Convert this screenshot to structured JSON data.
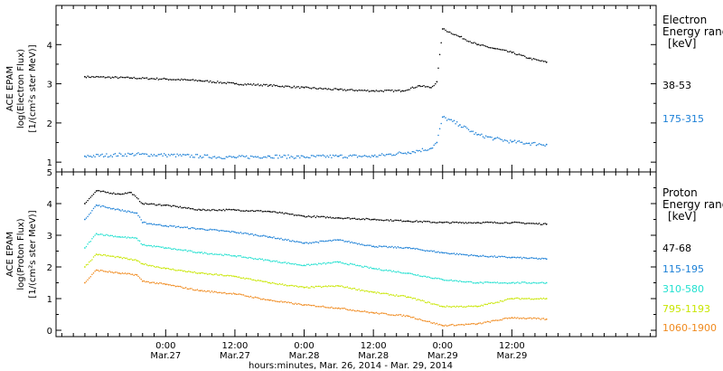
{
  "chart_data": [
    {
      "type": "scatter",
      "panel": "electron",
      "ylabel_lines": [
        "ACE EPAM",
        "log(Electron Flux)",
        "[1/(cm²s ster MeV)]"
      ],
      "ylim": [
        0.75,
        5.0
      ],
      "yticks": [
        1,
        2,
        3,
        4
      ],
      "legend_title": [
        "Electron",
        "Energy ranges",
        "[keV]"
      ],
      "series": [
        {
          "name": "38-53",
          "color": "#000000",
          "points": [
            [
              -14,
              3.18
            ],
            [
              -6,
              3.15
            ],
            [
              0,
              3.12
            ],
            [
              6,
              3.08
            ],
            [
              12,
              3.0
            ],
            [
              18,
              2.96
            ],
            [
              24,
              2.9
            ],
            [
              30,
              2.85
            ],
            [
              36,
              2.82
            ],
            [
              41,
              2.82
            ],
            [
              44,
              2.95
            ],
            [
              46,
              2.9
            ],
            [
              47,
              3.05
            ],
            [
              48,
              4.4
            ],
            [
              51,
              4.2
            ],
            [
              54,
              4.0
            ],
            [
              57,
              3.9
            ],
            [
              60,
              3.8
            ],
            [
              63,
              3.65
            ],
            [
              66,
              3.55
            ]
          ]
        },
        {
          "name": "175-315",
          "color": "#1a7fd6",
          "points": [
            [
              -14,
              1.15
            ],
            [
              -6,
              1.2
            ],
            [
              0,
              1.18
            ],
            [
              6,
              1.15
            ],
            [
              12,
              1.12
            ],
            [
              18,
              1.15
            ],
            [
              24,
              1.13
            ],
            [
              30,
              1.15
            ],
            [
              36,
              1.15
            ],
            [
              42,
              1.25
            ],
            [
              46,
              1.35
            ],
            [
              47,
              1.5
            ],
            [
              48,
              2.15
            ],
            [
              51,
              1.95
            ],
            [
              54,
              1.7
            ],
            [
              57,
              1.6
            ],
            [
              60,
              1.52
            ],
            [
              63,
              1.48
            ],
            [
              66,
              1.45
            ]
          ]
        }
      ]
    },
    {
      "type": "scatter",
      "panel": "proton",
      "ylabel_lines": [
        "ACE EPAM",
        "log(Proton Flux)",
        "[1/(cm²s ster MeV)]"
      ],
      "ylim": [
        -0.2,
        5.0
      ],
      "yticks": [
        0,
        1,
        2,
        3,
        4,
        5
      ],
      "legend_title": [
        "Proton",
        "Energy ranges",
        "[keV]"
      ],
      "series": [
        {
          "name": "47-68",
          "color": "#000000",
          "points": [
            [
              -14,
              4.0
            ],
            [
              -12,
              4.4
            ],
            [
              -8,
              4.3
            ],
            [
              -6,
              4.35
            ],
            [
              -4,
              4.0
            ],
            [
              0,
              3.95
            ],
            [
              6,
              3.8
            ],
            [
              12,
              3.8
            ],
            [
              18,
              3.75
            ],
            [
              24,
              3.6
            ],
            [
              30,
              3.55
            ],
            [
              36,
              3.5
            ],
            [
              42,
              3.45
            ],
            [
              48,
              3.4
            ],
            [
              54,
              3.4
            ],
            [
              60,
              3.4
            ],
            [
              66,
              3.35
            ]
          ]
        },
        {
          "name": "115-195",
          "color": "#1a7fd6",
          "points": [
            [
              -14,
              3.5
            ],
            [
              -12,
              3.95
            ],
            [
              -8,
              3.8
            ],
            [
              -5,
              3.7
            ],
            [
              -4,
              3.4
            ],
            [
              0,
              3.3
            ],
            [
              6,
              3.2
            ],
            [
              12,
              3.1
            ],
            [
              18,
              2.95
            ],
            [
              24,
              2.75
            ],
            [
              30,
              2.85
            ],
            [
              36,
              2.65
            ],
            [
              42,
              2.6
            ],
            [
              48,
              2.45
            ],
            [
              54,
              2.35
            ],
            [
              60,
              2.3
            ],
            [
              66,
              2.25
            ]
          ]
        },
        {
          "name": "310-580",
          "color": "#22e0d0",
          "points": [
            [
              -14,
              2.6
            ],
            [
              -12,
              3.05
            ],
            [
              -8,
              2.95
            ],
            [
              -5,
              2.9
            ],
            [
              -4,
              2.7
            ],
            [
              0,
              2.6
            ],
            [
              6,
              2.45
            ],
            [
              12,
              2.35
            ],
            [
              18,
              2.2
            ],
            [
              24,
              2.05
            ],
            [
              30,
              2.15
            ],
            [
              36,
              1.95
            ],
            [
              42,
              1.8
            ],
            [
              48,
              1.6
            ],
            [
              54,
              1.5
            ],
            [
              60,
              1.5
            ],
            [
              66,
              1.5
            ]
          ]
        },
        {
          "name": "795-1193",
          "color": "#c8e600",
          "points": [
            [
              -14,
              2.0
            ],
            [
              -12,
              2.4
            ],
            [
              -8,
              2.3
            ],
            [
              -5,
              2.2
            ],
            [
              -4,
              2.1
            ],
            [
              0,
              1.95
            ],
            [
              6,
              1.8
            ],
            [
              12,
              1.7
            ],
            [
              18,
              1.5
            ],
            [
              24,
              1.35
            ],
            [
              30,
              1.4
            ],
            [
              36,
              1.2
            ],
            [
              42,
              1.05
            ],
            [
              48,
              0.75
            ],
            [
              54,
              0.75
            ],
            [
              60,
              1.0
            ],
            [
              66,
              1.0
            ]
          ]
        },
        {
          "name": "1060-1900",
          "color": "#f08a1e",
          "points": [
            [
              -14,
              1.5
            ],
            [
              -12,
              1.9
            ],
            [
              -8,
              1.8
            ],
            [
              -5,
              1.75
            ],
            [
              -4,
              1.55
            ],
            [
              0,
              1.45
            ],
            [
              6,
              1.25
            ],
            [
              12,
              1.15
            ],
            [
              18,
              0.95
            ],
            [
              24,
              0.8
            ],
            [
              30,
              0.7
            ],
            [
              36,
              0.55
            ],
            [
              42,
              0.45
            ],
            [
              48,
              0.15
            ],
            [
              54,
              0.2
            ],
            [
              60,
              0.4
            ],
            [
              66,
              0.35
            ]
          ]
        }
      ]
    }
  ],
  "x_axis": {
    "title": "hours:minutes, Mar. 26, 2014 - Mar. 29, 2014",
    "range_hours": [
      -19,
      85
    ],
    "ticks": [
      {
        "hour": 0,
        "time": "0:00",
        "date": "Mar.27"
      },
      {
        "hour": 12,
        "time": "12:00",
        "date": "Mar.27"
      },
      {
        "hour": 24,
        "time": "0:00",
        "date": "Mar.28"
      },
      {
        "hour": 36,
        "time": "12:00",
        "date": "Mar.28"
      },
      {
        "hour": 48,
        "time": "0:00",
        "date": "Mar.29"
      },
      {
        "hour": 60,
        "time": "12:00",
        "date": "Mar.29"
      }
    ],
    "minor_step_hours": 2
  }
}
